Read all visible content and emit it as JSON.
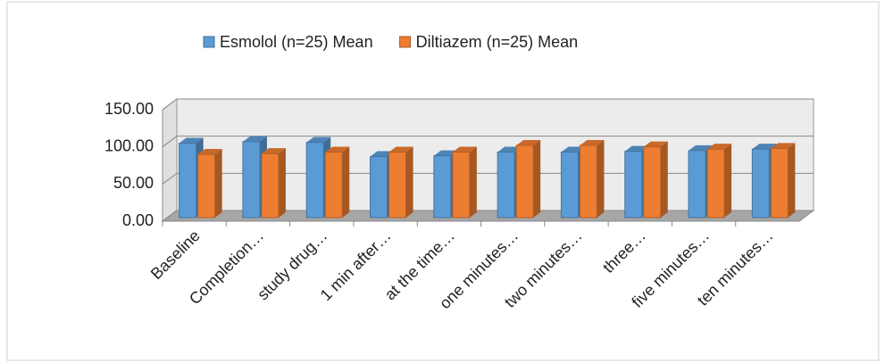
{
  "chart_data": {
    "type": "bar3d",
    "categories": [
      "Baseline",
      "Completion…",
      "study drug…",
      "1 min after…",
      "at the time…",
      "one minutes…",
      "two minutes…",
      "three…",
      "five minutes…",
      "ten minutes…"
    ],
    "series": [
      {
        "name": "Esmolol (n=25) Mean",
        "color": "#5b9bd5",
        "values": [
          105,
          107,
          106,
          87,
          88,
          93,
          93,
          94,
          95,
          97
        ]
      },
      {
        "name": "Diltiazem (n=25) Mean",
        "color": "#ed7d31",
        "values": [
          90,
          91,
          93,
          93,
          93,
          102,
          102,
          100,
          97,
          98
        ]
      }
    ],
    "ylim": [
      0,
      150
    ],
    "yticks": [
      {
        "value": 0,
        "label": "0.00"
      },
      {
        "value": 50,
        "label": "50.00"
      },
      {
        "value": 100,
        "label": "100.00"
      },
      {
        "value": 150,
        "label": "150.00"
      }
    ],
    "grid": true,
    "legend": "top"
  }
}
